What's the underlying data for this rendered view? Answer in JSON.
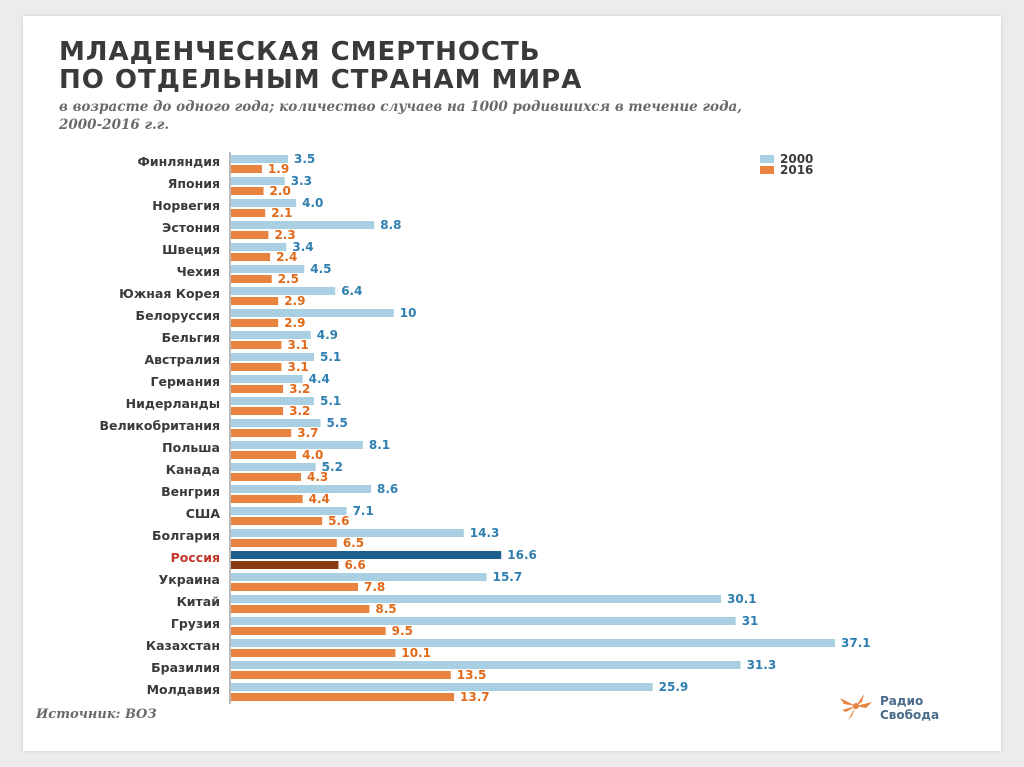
{
  "title_line1": "МЛАДЕНЧЕСКАЯ СМЕРТНОСТЬ",
  "title_line2": "ПО ОТДЕЛЬНЫМ СТРАНАМ МИРА",
  "subtitle_line1": "в возрасте до одного года; количество случаев на 1000 родившихся в течение года,",
  "subtitle_line2": "2000-2016 г.г.",
  "source": "Источник: ВОЗ",
  "logo": {
    "line1": "Радио",
    "line2": "Свобода",
    "icon": "radio-svoboda-logo-icon"
  },
  "colors": {
    "series_2000": "#a9cfe3",
    "series_2016": "#e8843f",
    "highlight_2000": "#1f5f8b",
    "highlight_2016": "#8a3a12",
    "value_2000_text": "#2f7fb0",
    "value_2016_text": "#e06a1a",
    "label_text": "#3a3a3a",
    "highlight_label_text": "#c0392b",
    "axis": "#777777"
  },
  "chart_data": {
    "type": "bar",
    "orientation": "horizontal",
    "highlight": "Россия",
    "categories": [
      "Финляндия",
      "Япония",
      "Норвегия",
      "Эстония",
      "Швеция",
      "Чехия",
      "Южная Корея",
      "Белоруссия",
      "Бельгия",
      "Австралия",
      "Германия",
      "Нидерланды",
      "Великобритания",
      "Польша",
      "Канада",
      "Венгрия",
      "США",
      "Болгария",
      "Россия",
      "Украина",
      "Китай",
      "Грузия",
      "Казахстан",
      "Бразилия",
      "Молдавия"
    ],
    "series": [
      {
        "name": "2000",
        "values": [
          3.5,
          3.3,
          4.0,
          8.8,
          3.4,
          4.5,
          6.4,
          10,
          4.9,
          5.1,
          4.4,
          5.1,
          5.5,
          8.1,
          5.2,
          8.6,
          7.1,
          14.3,
          16.6,
          15.7,
          30.1,
          31,
          37.1,
          31.3,
          25.9
        ],
        "labels": [
          "3.5",
          "3.3",
          "4.0",
          "8.8",
          "3.4",
          "4.5",
          "6.4",
          "10",
          "4.9",
          "5.1",
          "4.4",
          "5.1",
          "5.5",
          "8.1",
          "5.2",
          "8.6",
          "7.1",
          "14.3",
          "16.6",
          "15.7",
          "30.1",
          "31",
          "37.1",
          "31.3",
          "25.9"
        ]
      },
      {
        "name": "2016",
        "values": [
          1.9,
          2.0,
          2.1,
          2.3,
          2.4,
          2.5,
          2.9,
          2.9,
          3.1,
          3.1,
          3.2,
          3.2,
          3.7,
          4.0,
          4.3,
          4.4,
          5.6,
          6.5,
          6.6,
          7.8,
          8.5,
          9.5,
          10.1,
          13.5,
          13.7
        ],
        "labels": [
          "1.9",
          "2.0",
          "2.1",
          "2.3",
          "2.4",
          "2.5",
          "2.9",
          "2.9",
          "3.1",
          "3.1",
          "3.2",
          "3.2",
          "3.7",
          "4.0",
          "4.3",
          "4.4",
          "5.6",
          "6.5",
          "6.6",
          "7.8",
          "8.5",
          "9.5",
          "10.1",
          "13.5",
          "13.7"
        ]
      }
    ],
    "legend_position": "top-right",
    "grid": false,
    "xlim": [
      0,
      37.1
    ]
  }
}
